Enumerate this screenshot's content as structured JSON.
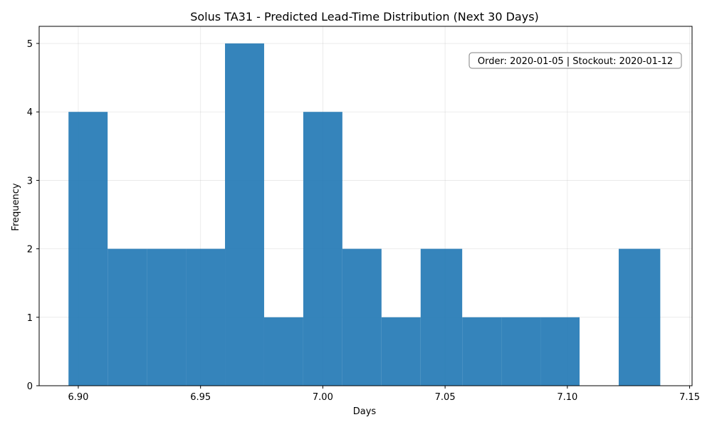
{
  "chart_data": {
    "type": "bar",
    "title": "Solus TA31 - Predicted Lead-Time Distribution (Next 30 Days)",
    "xlabel": "Days",
    "ylabel": "Frequency",
    "xlim": [
      6.884,
      7.151
    ],
    "ylim": [
      0,
      5.25
    ],
    "xticks": [
      6.9,
      6.95,
      7.0,
      7.05,
      7.1,
      7.15
    ],
    "xtick_labels": [
      "6.90",
      "6.95",
      "7.00",
      "7.05",
      "7.10",
      "7.15"
    ],
    "yticks": [
      0,
      1,
      2,
      3,
      4,
      5
    ],
    "ytick_labels": [
      "0",
      "1",
      "2",
      "3",
      "4",
      "5"
    ],
    "grid": true,
    "bar_color": "#1f77b4",
    "bin_edges": [
      6.896,
      6.912,
      6.928,
      6.944,
      6.96,
      6.976,
      6.992,
      7.008,
      7.024,
      7.04,
      7.057,
      7.073,
      7.089,
      7.105,
      7.121,
      7.138
    ],
    "values": [
      4,
      2,
      2,
      2,
      5,
      1,
      4,
      2,
      1,
      2,
      1,
      1,
      1,
      0,
      2
    ],
    "annotation": "Order: 2020-01-05 | Stockout: 2020-01-12"
  }
}
